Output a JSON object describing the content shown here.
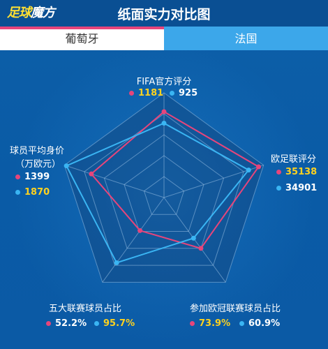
{
  "header": {
    "logo_part1": "足球",
    "logo_part2": "魔方",
    "title": "纸面实力对比图"
  },
  "teams": {
    "left": "葡萄牙",
    "right": "法国"
  },
  "colors": {
    "portugal": "#e6457b",
    "france": "#3ab5f3",
    "highlight": "#ffd21f"
  },
  "chart_data": {
    "type": "radar",
    "axes": [
      {
        "name": "FIFA官方评分",
        "portugal": "1181",
        "france": "925",
        "higher": "portugal"
      },
      {
        "name": "欧足联评分",
        "portugal": "35138",
        "france": "34901",
        "higher": "portugal"
      },
      {
        "name": "参加欧冠联赛球员占比",
        "portugal": "73.9%",
        "france": "60.9%",
        "higher": "portugal"
      },
      {
        "name": "五大联赛球员占比",
        "portugal": "52.2%",
        "france": "95.7%",
        "higher": "france"
      },
      {
        "name": "球员平均身价",
        "subname": "（万欧元）",
        "portugal": "1399",
        "france": "1870",
        "higher": "france"
      }
    ],
    "series": [
      {
        "name": "葡萄牙",
        "values": [
          0.82,
          0.95,
          0.6,
          0.39,
          0.73
        ]
      },
      {
        "name": "法国",
        "values": [
          0.71,
          0.85,
          0.48,
          0.77,
          0.98
        ]
      }
    ],
    "scale": [
      0,
      1
    ],
    "rings": 5
  }
}
